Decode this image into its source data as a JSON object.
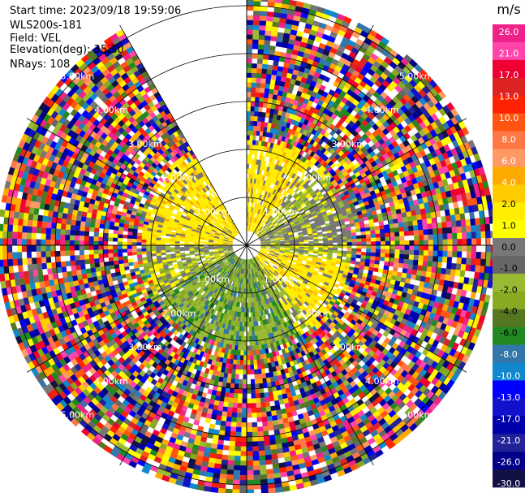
{
  "header": {
    "start_time": "Start time: 2023/09/18 19:59:06",
    "instrument": "WLS200s-181",
    "field": "Field: VEL",
    "elevation": "Elevation(deg): 35.30",
    "nrays": "NRays: 108"
  },
  "chart_data": {
    "type": "heatmap",
    "projection": "polar (PPI)",
    "title": "",
    "field": "VEL",
    "elevation_deg": 35.3,
    "n_rays": 108,
    "range_ring_labels": [
      "1.00km",
      "2.00km",
      "3.00km",
      "4.00km",
      "5.00km"
    ],
    "range_rings_km": [
      1,
      2,
      3,
      4,
      5
    ],
    "max_range_km": 5.2,
    "missing_sector_deg": [
      -30,
      0
    ],
    "colorbar": {
      "unit": "m/s",
      "ticks": [
        "26.0",
        "21.0",
        "17.0",
        "13.0",
        "10.0",
        "8.0",
        "6.0",
        "4.0",
        "2.0",
        "1.0",
        "0.0",
        "-1.0",
        "-2.0",
        "-4.0",
        "-6.0",
        "-8.0",
        "-10.0",
        "-13.0",
        "-17.0",
        "-21.0",
        "-26.0",
        "-30.0"
      ],
      "colors": [
        "#ee2288",
        "#ff44aa",
        "#ee0033",
        "#dd2222",
        "#ff2200",
        "#ff5511",
        "#ff7744",
        "#ff9966",
        "#ffaa00",
        "#ffcc00",
        "#ffee00",
        "#ffff00",
        "#777777",
        "#666666",
        "#99bb33",
        "#88aa22",
        "#557722",
        "#228822",
        "#3377aa",
        "#1188cc",
        "#0000ff",
        "#1111cc",
        "#0000aa",
        "#222299",
        "#000088",
        "#111144"
      ]
    },
    "structure": {
      "inner_yellow_sectors_deg": [
        [
          0,
          40
        ],
        [
          270,
          330
        ],
        [
          100,
          140
        ]
      ],
      "inner_green_sectors_deg": [
        [
          150,
          240
        ]
      ],
      "inner_gray_sectors_deg": [
        [
          60,
          90
        ],
        [
          260,
          275
        ]
      ],
      "noise_starts_km": 2.3
    }
  }
}
